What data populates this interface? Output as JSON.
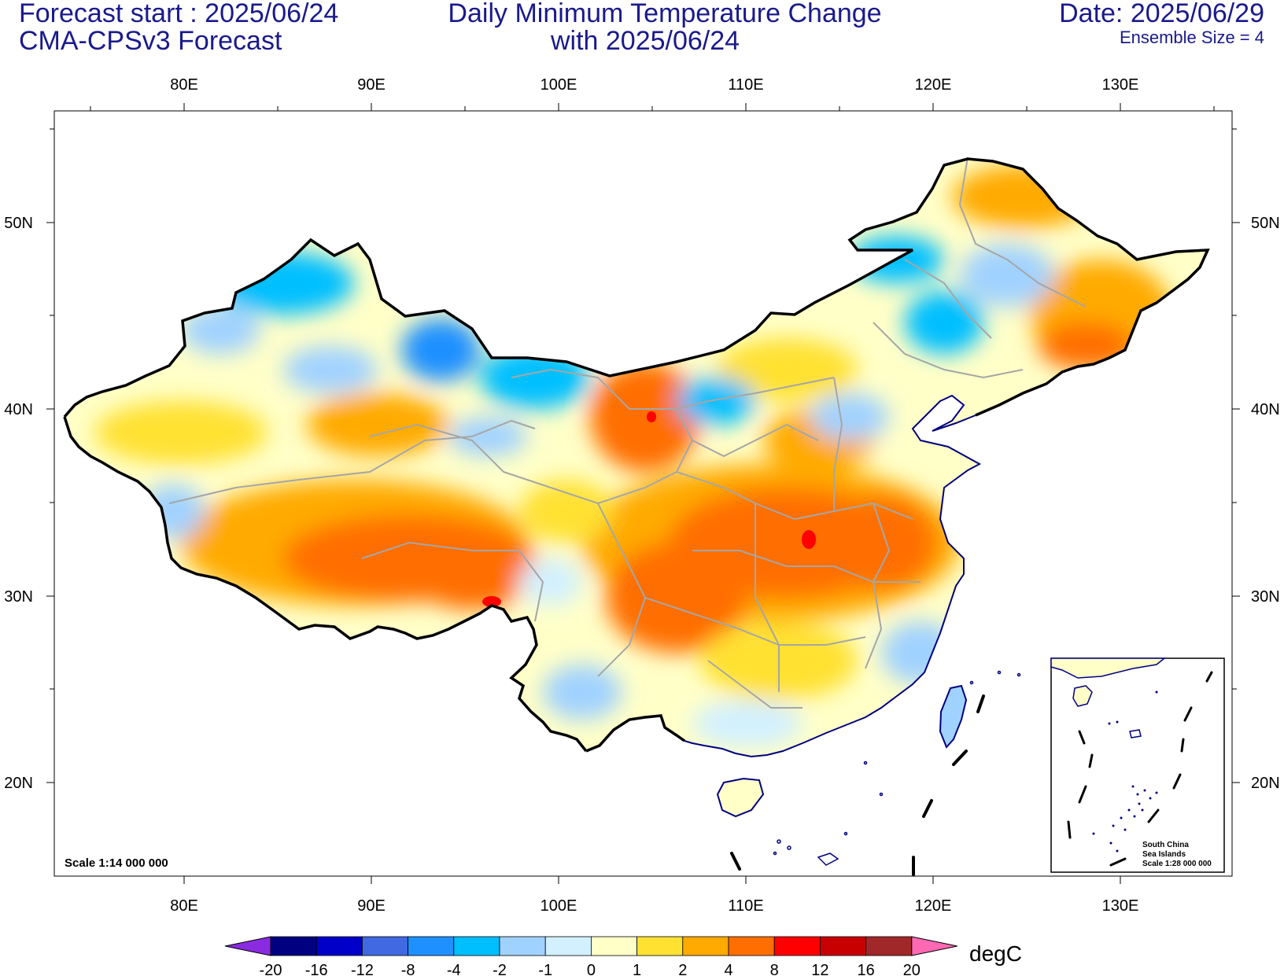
{
  "header": {
    "forecast_start": "Forecast start : 2025/06/24",
    "model": "CMA-CPSv3 Forecast",
    "title_line1": "Daily Minimum Temperature Change",
    "title_line2": "with 2025/06/24",
    "date": "Date: 2025/06/29",
    "ensemble": "Ensemble Size = 4"
  },
  "axes": {
    "lon_labels": [
      "80E",
      "90E",
      "100E",
      "110E",
      "120E",
      "130E"
    ],
    "lat_labels": [
      "50N",
      "40N",
      "30N",
      "20N"
    ]
  },
  "map": {
    "scale_label": "Scale 1:14 000 000",
    "inset": {
      "line1": "South China",
      "line2": "Sea Islands",
      "line3": "Scale 1:28 000 000"
    }
  },
  "colorbar": {
    "unit": "degC",
    "labels": [
      "-20",
      "-16",
      "-12",
      "-8",
      "-4",
      "-2",
      "-1",
      "0",
      "1",
      "2",
      "4",
      "8",
      "12",
      "16",
      "20"
    ],
    "colors": [
      "#000080",
      "#0000c8",
      "#4169e1",
      "#1e90ff",
      "#00bfff",
      "#a0d2ff",
      "#d2f0ff",
      "#ffffc8",
      "#ffe132",
      "#ffaa00",
      "#ff6e00",
      "#ff0000",
      "#c80000",
      "#a02828"
    ],
    "under_color": "#8a2be2",
    "over_color": "#ff69b4"
  }
}
